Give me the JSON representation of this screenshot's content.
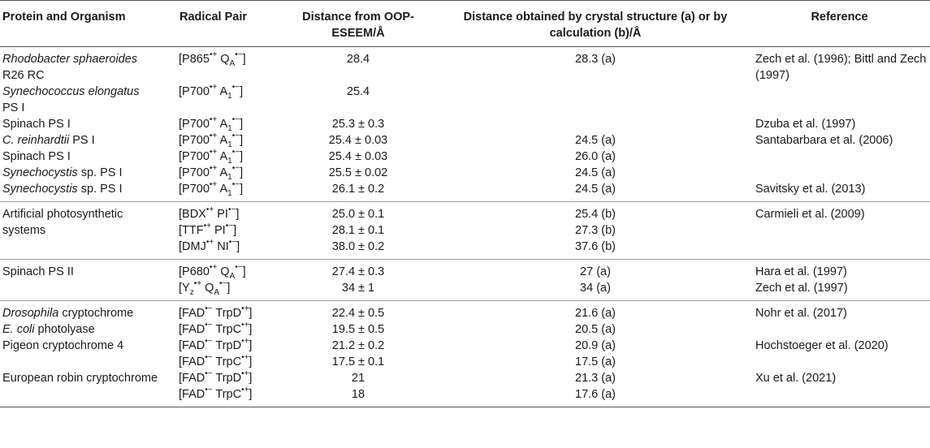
{
  "headers": {
    "organism": "Protein and Organism",
    "pair": "Radical Pair",
    "oop_line1": "Distance from OOP-",
    "oop_line2": "ESEEM/Å",
    "calc_line1": "Distance obtained by crystal structure (a) or by",
    "calc_line2": "calculation (b)/Å",
    "reference": "Reference"
  },
  "glyphs": {
    "bullet": "•",
    "plus": "+",
    "minus": "−",
    "lb": "[",
    "rb": "]"
  },
  "rows": [
    {
      "org_it": "Rhodobacter sphaeroides",
      "org_line2": "R26 RC",
      "p1": "P865",
      "s1": "+",
      "p2": "Q",
      "sub2": "A",
      "s2": "−",
      "dist": "28.4",
      "calc": "28.3 (a)",
      "ref": "Zech et al. (1996); Bittl and Zech",
      "ref_line2": "(1997)"
    },
    {
      "org_it": "Synechococcus elongatus",
      "org_line2": "PS I",
      "p1": "P700",
      "s1": "+",
      "p2": "A",
      "sub2": "1",
      "s2": "−",
      "dist": "25.4",
      "calc": "",
      "ref": ""
    },
    {
      "org": "Spinach PS I",
      "p1": "P700",
      "s1": "+",
      "p2": "A",
      "sub2": "1",
      "s2": "−",
      "dist": "25.3 ± 0.3",
      "calc": "",
      "ref": "Dzuba et al. (1997)"
    },
    {
      "org_it": "C. reinhardtii",
      "org_rest": " PS I",
      "p1": "P700",
      "s1": "+",
      "p2": "A",
      "sub2": "1",
      "s2": "−",
      "dist": "25.4 ± 0.03",
      "calc": "24.5 (a)",
      "ref": "Santabarbara et al. (2006)"
    },
    {
      "org": "Spinach PS I",
      "p1": "P700",
      "s1": "+",
      "p2": "A",
      "sub2": "1",
      "s2": "−",
      "dist": "25.4 ± 0.03",
      "calc": "26.0 (a)",
      "ref": ""
    },
    {
      "org_it": "Synechocystis",
      "org_rest": " sp. PS I",
      "p1": "P700",
      "s1": "+",
      "p2": "A",
      "sub2": "1",
      "s2": "−",
      "dist": "25.5 ± 0.02",
      "calc": "24.5 (a)",
      "ref": ""
    },
    {
      "org_it": "Synechocystis",
      "org_rest": " sp. PS I",
      "p1": "P700",
      "s1": "+",
      "p2": "A",
      "sub2": "1",
      "s2": "−",
      "dist": "26.1 ± 0.2",
      "calc": "24.5 (a)",
      "ref": "Savitsky et al. (2013)"
    },
    {
      "org": "Artificial photosynthetic",
      "p1": "BDX",
      "s1": "+",
      "p2": "PI",
      "s2": "−",
      "dist": "25.0 ± 0.1",
      "calc": "25.4 (b)",
      "ref": "Carmieli et al. (2009)"
    },
    {
      "org": "systems",
      "p1": "TTF",
      "s1": "+",
      "p2": "PI",
      "s2": "−",
      "dist": "28.1 ± 0.1",
      "calc": "27.3 (b)",
      "ref": ""
    },
    {
      "org": "",
      "p1": "DMJ",
      "s1": "+",
      "p2": "NI",
      "s2": "−",
      "dist": "38.0 ± 0.2",
      "calc": "37.6 (b)",
      "ref": ""
    },
    {
      "org": "Spinach PS II",
      "p1": "P680",
      "s1": "+",
      "p2": "Q",
      "sub2": "A",
      "s2": "−",
      "dist": "27.4 ± 0.3",
      "calc": "27 (a)",
      "ref": "Hara et al. (1997)"
    },
    {
      "org": "",
      "p1": "Y",
      "sub1": "z",
      "s1": "+",
      "p2": "Q",
      "sub2": "A",
      "s2": "−",
      "dist": "34 ± 1",
      "calc": "34 (a)",
      "ref": "Zech et al. (1997)"
    },
    {
      "org_it": "Drosophila",
      "org_rest": " cryptochrome",
      "p1": "FAD",
      "s1": "−",
      "p2": "TrpD",
      "s2": "+",
      "dist": "22.4 ± 0.5",
      "calc": "21.6 (a)",
      "ref": "Nohr et al. (2017)"
    },
    {
      "org_it": "E. coli",
      "org_rest": " photolyase",
      "p1": "FAD",
      "s1": "−",
      "p2": "TrpC",
      "s2": "+",
      "dist": "19.5 ± 0.5",
      "calc": "20.5 (a)",
      "ref": ""
    },
    {
      "org": "Pigeon cryptochrome 4",
      "p1": "FAD",
      "s1": "−",
      "p2": "TrpD",
      "s2": "+",
      "dist": "21.2 ± 0.2",
      "calc": "20.9 (a)",
      "ref": "Hochstoeger et al. (2020)"
    },
    {
      "org": "",
      "p1": "FAD",
      "s1": "−",
      "p2": "TrpC",
      "s2": "+",
      "dist": "17.5 ± 0.1",
      "calc": "17.5 (a)",
      "ref": ""
    },
    {
      "org": "European robin cryptochrome",
      "p1": "FAD",
      "s1": "−",
      "p2": "TrpD",
      "s2": "+",
      "dist": "21",
      "calc": "21.3 (a)",
      "ref": "Xu et al. (2021)"
    },
    {
      "org": "",
      "p1": "FAD",
      "s1": "−",
      "p2": "TrpC",
      "s2": "+",
      "dist": "18",
      "calc": "17.6 (a)",
      "ref": ""
    }
  ]
}
